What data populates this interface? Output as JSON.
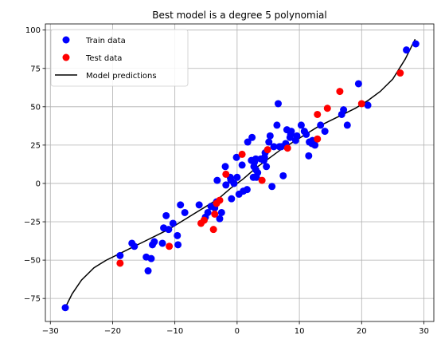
{
  "chart_data": {
    "type": "scatter",
    "title": "Best model is a degree 5 polynomial",
    "xlabel": "",
    "ylabel": "",
    "xlim": [
      -30.8,
      31.6
    ],
    "ylim": [
      -90,
      104
    ],
    "xticks": [
      -30,
      -20,
      -10,
      0,
      10,
      20,
      30
    ],
    "yticks": [
      -75,
      -50,
      -25,
      0,
      25,
      50,
      75,
      100
    ],
    "grid": true,
    "legend_position": "upper-left",
    "series": [
      {
        "name": "Train data",
        "kind": "scatter",
        "color": "#0000ff",
        "points": [
          [
            -27.6,
            -81
          ],
          [
            -18.8,
            -47
          ],
          [
            -16.9,
            -39
          ],
          [
            -16.5,
            -41
          ],
          [
            -14.6,
            -48
          ],
          [
            -14.3,
            -57
          ],
          [
            -13.8,
            -49
          ],
          [
            -13.6,
            -40
          ],
          [
            -13.3,
            -38
          ],
          [
            -12.0,
            -39
          ],
          [
            -11.8,
            -29
          ],
          [
            -11.4,
            -21
          ],
          [
            -11.0,
            -30
          ],
          [
            -10.3,
            -26
          ],
          [
            -9.6,
            -34
          ],
          [
            -9.5,
            -40
          ],
          [
            -9.1,
            -14
          ],
          [
            -8.4,
            -19
          ],
          [
            -6.1,
            -14
          ],
          [
            -5.1,
            -22
          ],
          [
            -4.7,
            -19
          ],
          [
            -4.2,
            -15
          ],
          [
            -3.6,
            -16
          ],
          [
            -3.3,
            -12
          ],
          [
            -3.2,
            2
          ],
          [
            -2.8,
            -23
          ],
          [
            -2.5,
            -19
          ],
          [
            -1.9,
            11
          ],
          [
            -1.8,
            -1
          ],
          [
            -1.1,
            4
          ],
          [
            -1.0,
            2
          ],
          [
            -0.9,
            -10
          ],
          [
            -0.5,
            0
          ],
          [
            -0.1,
            17
          ],
          [
            0.0,
            4
          ],
          [
            0.3,
            -7
          ],
          [
            0.8,
            12
          ],
          [
            1.0,
            -5
          ],
          [
            1.6,
            -4
          ],
          [
            1.7,
            27
          ],
          [
            2.3,
            15
          ],
          [
            2.4,
            30
          ],
          [
            2.6,
            4
          ],
          [
            2.7,
            11
          ],
          [
            2.8,
            14
          ],
          [
            3.0,
            9
          ],
          [
            3.0,
            16
          ],
          [
            3.1,
            4
          ],
          [
            3.3,
            7
          ],
          [
            3.8,
            16
          ],
          [
            4.3,
            15
          ],
          [
            4.4,
            17
          ],
          [
            4.5,
            20
          ],
          [
            4.7,
            11
          ],
          [
            5.1,
            27
          ],
          [
            5.3,
            31
          ],
          [
            5.6,
            -2
          ],
          [
            5.9,
            24
          ],
          [
            6.4,
            38
          ],
          [
            6.6,
            52
          ],
          [
            6.8,
            24
          ],
          [
            7.1,
            24
          ],
          [
            7.4,
            5
          ],
          [
            7.8,
            26
          ],
          [
            8.0,
            35
          ],
          [
            8.5,
            30
          ],
          [
            8.6,
            32
          ],
          [
            8.7,
            34
          ],
          [
            9.4,
            28
          ],
          [
            9.6,
            31
          ],
          [
            10.3,
            38
          ],
          [
            10.8,
            34
          ],
          [
            11.1,
            32
          ],
          [
            11.5,
            18
          ],
          [
            11.6,
            27
          ],
          [
            12.0,
            26
          ],
          [
            12.1,
            28
          ],
          [
            12.5,
            25
          ],
          [
            13.4,
            38
          ],
          [
            14.1,
            34
          ],
          [
            16.8,
            45
          ],
          [
            17.1,
            48
          ],
          [
            17.7,
            38
          ],
          [
            19.5,
            65
          ],
          [
            21.0,
            51
          ],
          [
            27.2,
            87
          ],
          [
            28.7,
            91
          ]
        ]
      },
      {
        "name": "Test data",
        "kind": "scatter",
        "color": "#ff0000",
        "points": [
          [
            -18.8,
            -52
          ],
          [
            -10.9,
            -41
          ],
          [
            -5.8,
            -26
          ],
          [
            -5.3,
            -24
          ],
          [
            -3.8,
            -30
          ],
          [
            -3.6,
            -20
          ],
          [
            -3.3,
            -13
          ],
          [
            -2.8,
            -11
          ],
          [
            -1.8,
            6
          ],
          [
            0.8,
            19
          ],
          [
            4.0,
            2
          ],
          [
            4.9,
            22
          ],
          [
            8.1,
            23
          ],
          [
            12.9,
            29
          ],
          [
            12.9,
            45
          ],
          [
            14.5,
            49
          ],
          [
            16.5,
            60
          ],
          [
            20.0,
            52
          ],
          [
            26.2,
            72
          ]
        ]
      },
      {
        "name": "Model predictions",
        "kind": "line",
        "color": "#000000",
        "points": [
          [
            -27.6,
            -81
          ],
          [
            -26.5,
            -72
          ],
          [
            -25.0,
            -63
          ],
          [
            -23.0,
            -55
          ],
          [
            -21.0,
            -50
          ],
          [
            -19.0,
            -46
          ],
          [
            -17.0,
            -42
          ],
          [
            -15.0,
            -38
          ],
          [
            -13.0,
            -34
          ],
          [
            -11.0,
            -30
          ],
          [
            -9.0,
            -25
          ],
          [
            -7.0,
            -20
          ],
          [
            -5.0,
            -15
          ],
          [
            -3.0,
            -10
          ],
          [
            -1.0,
            -3
          ],
          [
            1.0,
            3
          ],
          [
            3.0,
            10
          ],
          [
            5.0,
            16
          ],
          [
            7.0,
            22
          ],
          [
            9.0,
            27
          ],
          [
            11.0,
            32
          ],
          [
            13.0,
            37
          ],
          [
            15.0,
            41
          ],
          [
            17.0,
            45
          ],
          [
            19.0,
            49
          ],
          [
            21.0,
            54
          ],
          [
            23.0,
            60
          ],
          [
            25.0,
            68
          ],
          [
            27.0,
            81
          ],
          [
            28.6,
            94
          ]
        ]
      }
    ]
  }
}
